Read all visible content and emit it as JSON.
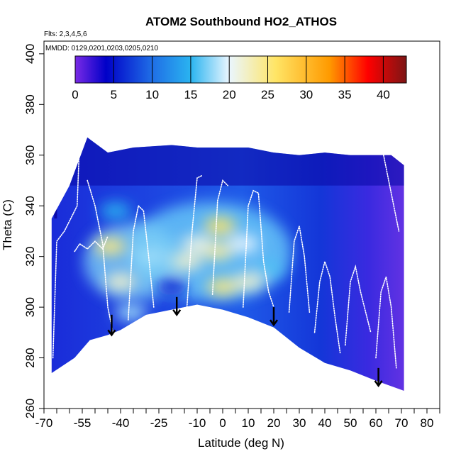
{
  "chart_data": {
    "type": "heatmap",
    "title": "ATOM2 Southbound HO2_ATHOS",
    "flights_note": "Flts: 2,3,4,5,6",
    "dates_note": "MMDD: 0129,0201,0203,0205,0210",
    "xlabel": "Latitude (deg N)",
    "ylabel": "Theta (C)",
    "xlim": [
      -70,
      85
    ],
    "ylim": [
      260,
      405
    ],
    "x_ticks": [
      -70,
      -55,
      -40,
      -25,
      -10,
      0,
      10,
      20,
      30,
      40,
      50,
      60,
      70,
      80
    ],
    "x_minor_ticks": [
      -65,
      -60,
      -50,
      -45,
      -35,
      -30,
      -20,
      -15,
      -5,
      5,
      15,
      25,
      35,
      45,
      55,
      65,
      75,
      85
    ],
    "y_ticks": [
      260,
      280,
      300,
      320,
      340,
      360,
      380,
      400
    ],
    "colorbar": {
      "min": 0,
      "max": 43,
      "ticks": [
        0,
        5,
        10,
        15,
        20,
        25,
        30,
        35,
        40
      ],
      "colors": [
        "#7a2ae6",
        "#0000c8",
        "#1f6ee6",
        "#2ab4f0",
        "#eaf6ff",
        "#ffe566",
        "#ff9a00",
        "#ff0000",
        "#7c1515"
      ],
      "color_stops": [
        0,
        4,
        10,
        15,
        20,
        26,
        33,
        38,
        43
      ]
    },
    "surface_theta": [
      {
        "lat": -67,
        "theta": 274
      },
      {
        "lat": -58,
        "theta": 280
      },
      {
        "lat": -52,
        "theta": 287
      },
      {
        "lat": -45,
        "theta": 289
      },
      {
        "lat": -40,
        "theta": 291
      },
      {
        "lat": -30,
        "theta": 297
      },
      {
        "lat": -20,
        "theta": 299
      },
      {
        "lat": -10,
        "theta": 301
      },
      {
        "lat": 0,
        "theta": 299
      },
      {
        "lat": 10,
        "theta": 296
      },
      {
        "lat": 20,
        "theta": 292
      },
      {
        "lat": 30,
        "theta": 284
      },
      {
        "lat": 40,
        "theta": 278
      },
      {
        "lat": 50,
        "theta": 275
      },
      {
        "lat": 60,
        "theta": 271
      },
      {
        "lat": 71,
        "theta": 267
      }
    ],
    "data_top_theta": [
      {
        "lat": -67,
        "theta": 335
      },
      {
        "lat": -60,
        "theta": 348
      },
      {
        "lat": -53,
        "theta": 367
      },
      {
        "lat": -45,
        "theta": 361
      },
      {
        "lat": -35,
        "theta": 363
      },
      {
        "lat": -20,
        "theta": 364
      },
      {
        "lat": -10,
        "theta": 363
      },
      {
        "lat": 0,
        "theta": 363
      },
      {
        "lat": 10,
        "theta": 363
      },
      {
        "lat": 20,
        "theta": 361
      },
      {
        "lat": 30,
        "theta": 360
      },
      {
        "lat": 40,
        "theta": 361
      },
      {
        "lat": 50,
        "theta": 360
      },
      {
        "lat": 60,
        "theta": 360
      },
      {
        "lat": 66,
        "theta": 360
      },
      {
        "lat": 71,
        "theta": 356
      }
    ],
    "hotspots": [
      {
        "lat": 0,
        "theta": 308,
        "value": 25
      },
      {
        "lat": -1,
        "theta": 332,
        "value": 26
      },
      {
        "lat": -2,
        "theta": 322,
        "value": 24
      },
      {
        "lat": -44,
        "theta": 324,
        "value": 25
      },
      {
        "lat": -40,
        "theta": 310,
        "value": 22
      },
      {
        "lat": 10,
        "theta": 310,
        "value": 22
      },
      {
        "lat": -10,
        "theta": 325,
        "value": 21
      },
      {
        "lat": -20,
        "theta": 308,
        "value": 6
      },
      {
        "lat": -14,
        "theta": 318,
        "value": 22
      },
      {
        "lat": -42,
        "theta": 338,
        "value": 15
      },
      {
        "lat": 8,
        "theta": 325,
        "value": 20
      },
      {
        "lat": 18,
        "theta": 315,
        "value": 16
      },
      {
        "lat": -36,
        "theta": 298,
        "value": 18
      },
      {
        "lat": -28,
        "theta": 320,
        "value": 18
      }
    ],
    "flight_tracks": [
      {
        "lat": [
          -66.5,
          -65,
          -62,
          -59.5,
          -57,
          -56
        ],
        "theta": [
          280,
          326,
          330,
          335,
          340,
          367
        ]
      },
      {
        "lat": [
          -58,
          -56,
          -53,
          -50,
          -47,
          -45
        ],
        "theta": [
          322,
          325,
          323,
          326,
          323,
          328
        ]
      },
      {
        "lat": [
          -53,
          -50,
          -47,
          -45,
          -43
        ],
        "theta": [
          350,
          340,
          325,
          300,
          290
        ]
      },
      {
        "lat": [
          -37,
          -35,
          -33,
          -31,
          -29,
          -27
        ],
        "theta": [
          295,
          330,
          340,
          338,
          320,
          300
        ]
      },
      {
        "lat": [
          -14,
          -12,
          -10,
          -8
        ],
        "theta": [
          300,
          330,
          351,
          352
        ]
      },
      {
        "lat": [
          -4,
          -2,
          0,
          2
        ],
        "theta": [
          305,
          342,
          350,
          348
        ]
      },
      {
        "lat": [
          8,
          10,
          12,
          14,
          16,
          18,
          20
        ],
        "theta": [
          300,
          340,
          346,
          345,
          318,
          306,
          300
        ]
      },
      {
        "lat": [
          26,
          28,
          30,
          32,
          34
        ],
        "theta": [
          298,
          326,
          332,
          320,
          298
        ]
      },
      {
        "lat": [
          36,
          38,
          40,
          42,
          44,
          46
        ],
        "theta": [
          290,
          310,
          318,
          312,
          296,
          282
        ]
      },
      {
        "lat": [
          48,
          50,
          52,
          54,
          56,
          58
        ],
        "theta": [
          285,
          310,
          316,
          306,
          298,
          290
        ]
      },
      {
        "lat": [
          60,
          62,
          64,
          66,
          68
        ],
        "theta": [
          280,
          306,
          312,
          300,
          276
        ]
      },
      {
        "lat": [
          63,
          65,
          67,
          69
        ],
        "theta": [
          360,
          350,
          340,
          330
        ]
      }
    ],
    "arrows": [
      {
        "lat": -43.5,
        "theta_tail": 297,
        "theta_head": 289
      },
      {
        "lat": -18,
        "theta_tail": 304,
        "theta_head": 297
      },
      {
        "lat": 20,
        "theta_tail": 300,
        "theta_head": 293
      },
      {
        "lat": 61,
        "theta_tail": 276,
        "theta_head": 269
      }
    ]
  }
}
